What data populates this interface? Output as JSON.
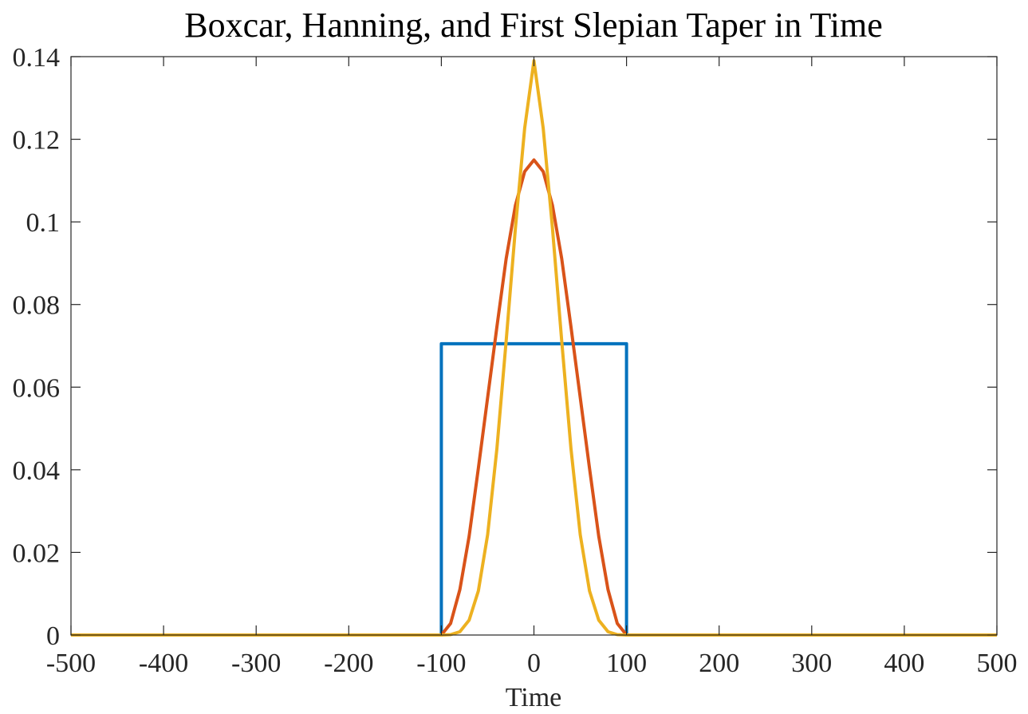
{
  "chart_data": {
    "type": "line",
    "title": "Boxcar, Hanning, and First Slepian Taper in Time",
    "xlabel": "Time",
    "ylabel": "",
    "xlim": [
      -500,
      500
    ],
    "ylim": [
      0,
      0.14
    ],
    "xticks": [
      -500,
      -400,
      -300,
      -200,
      -100,
      0,
      100,
      200,
      300,
      400,
      500
    ],
    "xtick_labels": [
      "-500",
      "-400",
      "-300",
      "-200",
      "-100",
      "0",
      "100",
      "200",
      "300",
      "400",
      "500"
    ],
    "yticks": [
      0,
      0.02,
      0.04,
      0.06,
      0.08,
      0.1,
      0.12,
      0.14
    ],
    "ytick_labels": [
      "0",
      "0.02",
      "0.04",
      "0.06",
      "0.08",
      "0.1",
      "0.12",
      "0.14"
    ],
    "grid": false,
    "legend": "none",
    "series": [
      {
        "color": "#0072BD",
        "x": [
          -500,
          -100,
          -100,
          100,
          100,
          500
        ],
        "y": [
          0,
          0,
          0.0705,
          0.0705,
          0,
          0
        ]
      },
      {
        "color": "#D95319",
        "x": [
          -500,
          -100,
          -90,
          -80,
          -70,
          -60,
          -50,
          -40,
          -30,
          -20,
          -10,
          0,
          10,
          20,
          30,
          40,
          50,
          60,
          70,
          80,
          90,
          100,
          500
        ],
        "y": [
          0,
          0,
          0.0028,
          0.011,
          0.0239,
          0.0404,
          0.0575,
          0.0746,
          0.0911,
          0.104,
          0.1122,
          0.115,
          0.1122,
          0.104,
          0.0911,
          0.0746,
          0.0575,
          0.0404,
          0.0239,
          0.011,
          0.0028,
          0,
          0
        ]
      },
      {
        "color": "#EDB120",
        "x": [
          -500,
          -100,
          -90,
          -80,
          -70,
          -60,
          -50,
          -40,
          -30,
          -20,
          -10,
          0,
          10,
          20,
          30,
          40,
          50,
          60,
          70,
          80,
          90,
          100,
          500
        ],
        "y": [
          0,
          0,
          0.0001,
          0.0008,
          0.0036,
          0.0107,
          0.0243,
          0.0451,
          0.0712,
          0.0985,
          0.1227,
          0.139,
          0.1227,
          0.0985,
          0.0712,
          0.0451,
          0.0243,
          0.0107,
          0.0036,
          0.0008,
          0.0001,
          0,
          0
        ]
      }
    ]
  }
}
